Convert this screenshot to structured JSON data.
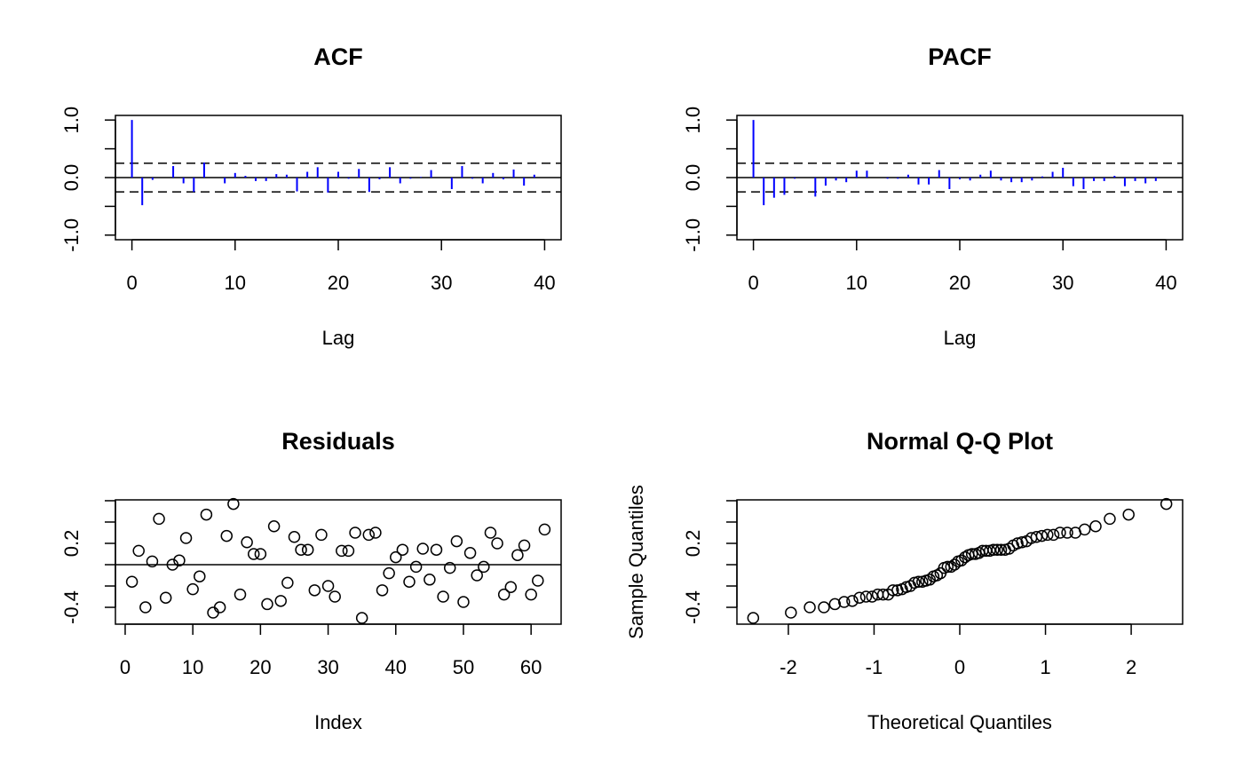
{
  "chart_data": [
    {
      "type": "bar",
      "title": "ACF",
      "x_label": "Lag",
      "x": [
        0,
        1,
        2,
        3,
        4,
        5,
        6,
        7,
        8,
        9,
        10,
        11,
        12,
        13,
        14,
        15,
        16,
        17,
        18,
        19,
        20,
        21,
        22,
        23,
        24,
        25,
        26,
        27,
        28,
        29,
        30,
        31,
        32,
        33,
        34,
        35,
        36,
        37,
        38,
        39
      ],
      "values": [
        1,
        -0.48,
        -0.04,
        0,
        0.2,
        -0.1,
        -0.25,
        0.26,
        0,
        -0.1,
        0.08,
        0.03,
        -0.06,
        -0.06,
        0.06,
        0.05,
        -0.24,
        0.1,
        0.18,
        -0.26,
        0.1,
        -0.02,
        0.15,
        -0.25,
        -0.03,
        0.18,
        -0.1,
        -0.02,
        0.01,
        0.13,
        0,
        -0.2,
        0.2,
        -0.02,
        -0.1,
        0.08,
        -0.03,
        0.14,
        -0.14,
        0.05
      ],
      "color": "#0000ff",
      "hline": 0,
      "dashed_lines": [
        0.249,
        -0.249
      ],
      "xlim": [
        -1.6,
        41.6
      ],
      "xticks": [
        0,
        10,
        20,
        30,
        40
      ],
      "ylim": [
        -1.08,
        1.08
      ],
      "yticks": [
        {
          "value": -1,
          "label": "-1.0"
        },
        {
          "value": 0,
          "label": "0.0"
        },
        {
          "value": 1,
          "label": "1.0"
        }
      ],
      "yminor_ticks": [
        -0.5,
        0.5
      ]
    },
    {
      "type": "bar",
      "title": "PACF",
      "x_label": "Lag",
      "x": [
        0,
        1,
        2,
        3,
        4,
        5,
        6,
        7,
        8,
        9,
        10,
        11,
        12,
        13,
        14,
        15,
        16,
        17,
        18,
        19,
        20,
        21,
        22,
        23,
        24,
        25,
        26,
        27,
        28,
        29,
        30,
        31,
        32,
        33,
        34,
        35,
        36,
        37,
        38,
        39
      ],
      "values": [
        1,
        -0.48,
        -0.35,
        -0.3,
        -0.02,
        0,
        -0.33,
        -0.14,
        -0.05,
        -0.08,
        0.12,
        0.12,
        0,
        -0.02,
        -0.02,
        0.05,
        -0.12,
        -0.12,
        0.13,
        -0.2,
        -0.03,
        -0.05,
        0.05,
        0.12,
        -0.05,
        -0.08,
        -0.08,
        -0.05,
        0.02,
        0.1,
        0.17,
        -0.15,
        -0.2,
        -0.06,
        -0.06,
        0.03,
        -0.15,
        -0.06,
        -0.1,
        -0.06
      ],
      "color": "#0000ff",
      "hline": 0,
      "dashed_lines": [
        0.249,
        -0.249
      ],
      "xlim": [
        -1.6,
        41.6
      ],
      "xticks": [
        0,
        10,
        20,
        30,
        40
      ],
      "ylim": [
        -1.08,
        1.08
      ],
      "yticks": [
        {
          "value": -1,
          "label": "-1.0"
        },
        {
          "value": 0,
          "label": "0.0"
        },
        {
          "value": 1,
          "label": "1.0"
        }
      ],
      "yminor_ticks": [
        -0.5,
        0.5
      ]
    },
    {
      "type": "scatter",
      "title": "Residuals",
      "x_label": "Index",
      "x": [
        1,
        2,
        3,
        4,
        5,
        6,
        7,
        8,
        9,
        10,
        11,
        12,
        13,
        14,
        15,
        16,
        17,
        18,
        19,
        20,
        21,
        22,
        23,
        24,
        25,
        26,
        27,
        28,
        29,
        30,
        31,
        32,
        33,
        34,
        35,
        36,
        37,
        38,
        39,
        40,
        41,
        42,
        43,
        44,
        45,
        46,
        47,
        48,
        49,
        50,
        51,
        52,
        53,
        54,
        55,
        56,
        57,
        58,
        59,
        60,
        61,
        62
      ],
      "values": [
        -0.16,
        0.13,
        -0.4,
        0.03,
        0.43,
        -0.31,
        0,
        0.04,
        0.25,
        -0.23,
        -0.11,
        0.47,
        -0.45,
        -0.4,
        0.27,
        0.57,
        -0.28,
        0.21,
        0.1,
        0.1,
        -0.37,
        0.36,
        -0.34,
        -0.17,
        0.26,
        0.14,
        0.14,
        -0.24,
        0.28,
        -0.2,
        -0.3,
        0.13,
        0.13,
        0.3,
        -0.5,
        0.28,
        0.3,
        -0.24,
        -0.08,
        0.07,
        0.14,
        -0.16,
        -0.02,
        0.15,
        -0.14,
        0.14,
        -0.3,
        -0.03,
        0.22,
        -0.35,
        0.11,
        -0.1,
        -0.02,
        0.3,
        0.2,
        -0.28,
        -0.21,
        0.09,
        0.18,
        -0.28,
        -0.15,
        0.33
      ],
      "hline": 0,
      "xlim": [
        -1.44,
        64.44
      ],
      "xticks": [
        0,
        10,
        20,
        30,
        40,
        50,
        60
      ],
      "ylim": [
        -0.558,
        0.608
      ],
      "yticks": [
        -0.4,
        0.2
      ],
      "yminor_ticks": [
        -0.2,
        0,
        0.4,
        0.6
      ]
    },
    {
      "type": "scatter",
      "title": "Normal Q-Q Plot",
      "x_label": "Theoretical Quantiles",
      "y_label": "Sample Quantiles",
      "x": [
        -2.41,
        -1.97,
        -1.75,
        -1.585,
        -1.457,
        -1.349,
        -1.254,
        -1.17,
        -1.093,
        -1.023,
        -0.957,
        -0.895,
        -0.835,
        -0.779,
        -0.726,
        -0.674,
        -0.624,
        -0.576,
        -0.529,
        -0.482,
        -0.437,
        -0.393,
        -0.35,
        -0.307,
        -0.266,
        -0.224,
        -0.183,
        -0.142,
        -0.101,
        -0.061,
        -0.02,
        0.02,
        0.061,
        0.101,
        0.142,
        0.183,
        0.224,
        0.266,
        0.307,
        0.35,
        0.393,
        0.437,
        0.482,
        0.529,
        0.576,
        0.624,
        0.674,
        0.726,
        0.779,
        0.835,
        0.895,
        0.957,
        1.023,
        1.093,
        1.17,
        1.254,
        1.349,
        1.457,
        1.585,
        1.75,
        1.97,
        2.41
      ],
      "values": [
        -0.5,
        -0.45,
        -0.4,
        -0.4,
        -0.37,
        -0.35,
        -0.34,
        -0.31,
        -0.3,
        -0.3,
        -0.28,
        -0.28,
        -0.28,
        -0.24,
        -0.24,
        -0.23,
        -0.21,
        -0.2,
        -0.17,
        -0.16,
        -0.16,
        -0.15,
        -0.14,
        -0.11,
        -0.1,
        -0.08,
        -0.03,
        -0.02,
        -0.02,
        0,
        0.03,
        0.04,
        0.07,
        0.09,
        0.1,
        0.1,
        0.11,
        0.13,
        0.13,
        0.13,
        0.14,
        0.14,
        0.14,
        0.14,
        0.15,
        0.18,
        0.2,
        0.21,
        0.22,
        0.25,
        0.26,
        0.27,
        0.28,
        0.28,
        0.3,
        0.3,
        0.3,
        0.33,
        0.36,
        0.43,
        0.47,
        0.57
      ],
      "xlim": [
        -2.6,
        2.6
      ],
      "xticks": [
        -2,
        -1,
        0,
        1,
        2
      ],
      "ylim": [
        -0.558,
        0.608
      ],
      "yticks": [
        -0.4,
        0.2
      ],
      "yminor_ticks": [
        -0.2,
        0,
        0.4,
        0.6
      ]
    }
  ]
}
